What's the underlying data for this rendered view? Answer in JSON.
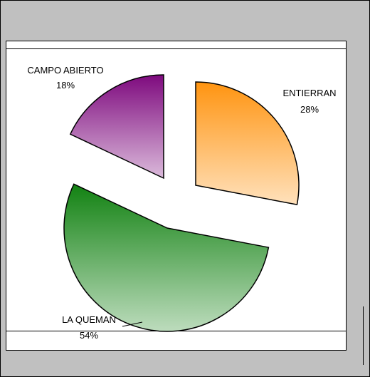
{
  "chart_data": {
    "type": "pie",
    "categories": [
      "ENTIERRAN",
      "LA QUEMAN",
      "CAMPO ABIERTO"
    ],
    "values": [
      28,
      54,
      18
    ],
    "value_labels": [
      "28%",
      "54%",
      "18%"
    ],
    "colors": [
      "#ff9410",
      "#128212",
      "#7e0a7e"
    ]
  }
}
